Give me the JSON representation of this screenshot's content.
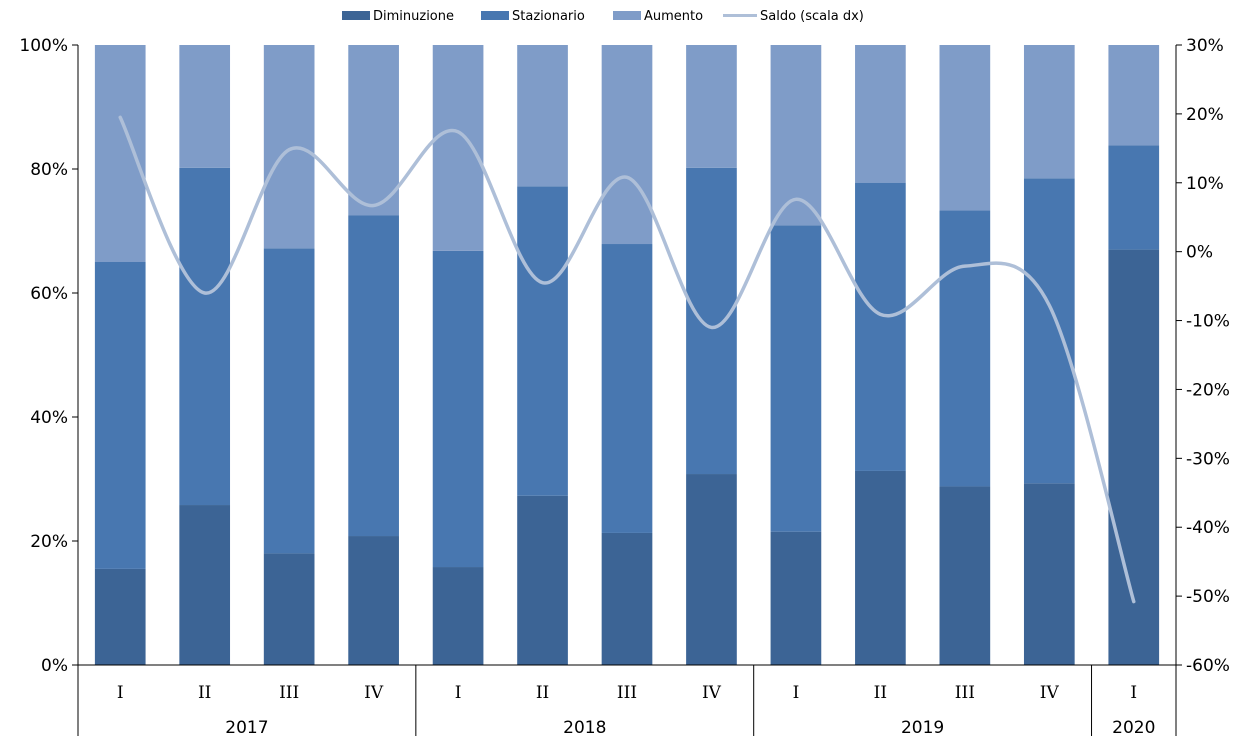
{
  "chart_data": {
    "type": "bar",
    "stacked": true,
    "categories": [
      "I",
      "II",
      "III",
      "IV",
      "I",
      "II",
      "III",
      "IV",
      "I",
      "II",
      "III",
      "IV",
      "I"
    ],
    "years": [
      {
        "label": "2017",
        "span": 4
      },
      {
        "label": "2018",
        "span": 4
      },
      {
        "label": "2019",
        "span": 4
      },
      {
        "label": "2020",
        "span": 1
      }
    ],
    "series": [
      {
        "name": "Diminuzione",
        "color": "#3c6495",
        "values": [
          15.5,
          25.8,
          18.0,
          20.8,
          15.8,
          27.3,
          21.3,
          30.8,
          21.5,
          31.3,
          28.8,
          29.3,
          67.0
        ]
      },
      {
        "name": "Stazionario",
        "color": "#4877b0",
        "values": [
          49.5,
          54.4,
          49.2,
          51.7,
          51.0,
          49.9,
          46.6,
          49.4,
          49.4,
          46.5,
          44.5,
          49.2,
          16.8
        ]
      },
      {
        "name": "Aumento",
        "color": "#7f9cc8",
        "values": [
          35.0,
          19.8,
          32.8,
          27.5,
          33.2,
          22.8,
          32.1,
          19.8,
          29.1,
          22.2,
          26.7,
          21.5,
          16.2
        ]
      }
    ],
    "line": {
      "name": "Saldo (scala dx)",
      "color": "#aebfd8",
      "values": [
        19.5,
        -6.0,
        14.8,
        6.7,
        17.4,
        -4.5,
        10.8,
        -11.0,
        7.6,
        -9.1,
        -2.1,
        -7.8,
        -50.8
      ]
    },
    "y_left": {
      "min": 0,
      "max": 100,
      "ticks": [
        "0%",
        "20%",
        "40%",
        "60%",
        "80%",
        "100%"
      ]
    },
    "y_right": {
      "min": -60,
      "max": 30,
      "ticks": [
        "-60%",
        "-50%",
        "-40%",
        "-30%",
        "-20%",
        "-10%",
        "0%",
        "10%",
        "20%",
        "30%"
      ]
    },
    "legend": {
      "position": "top-center",
      "items": [
        "Diminuzione",
        "Stazionario",
        "Aumento",
        "Saldo (scala dx)"
      ]
    },
    "grid": false
  }
}
